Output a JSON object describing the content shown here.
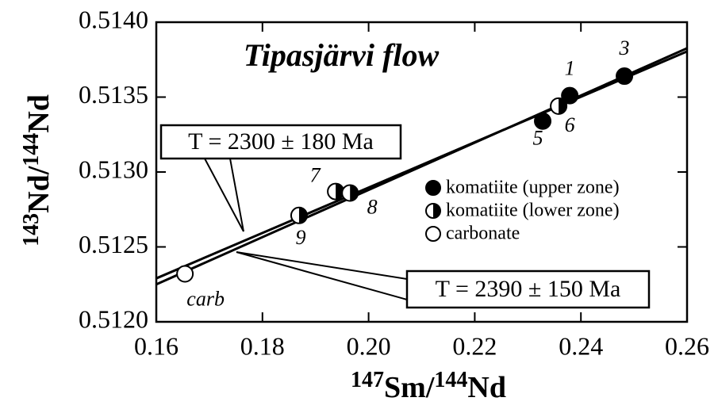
{
  "chart_data": {
    "type": "scatter",
    "title": "Tipasjärvi flow",
    "x_label": [
      "147",
      "Sm/",
      "144",
      "Nd"
    ],
    "y_label": [
      "143",
      "Nd/",
      "144",
      "Nd"
    ],
    "xlim": [
      0.16,
      0.26
    ],
    "xticks": [
      0.16,
      0.18,
      {
        "value": 0.2,
        "label": "0.20"
      },
      0.22,
      0.24,
      0.26
    ],
    "ylim": [
      0.512,
      0.514
    ],
    "yticks": [
      {
        "value": 0.512,
        "label": "0.5120"
      },
      0.5125,
      {
        "value": 0.513,
        "label": "0.5130"
      },
      0.5135,
      {
        "value": 0.514,
        "label": "0.5140"
      }
    ],
    "series": [
      {
        "name": "komatiite (upper zone)",
        "marker": "filled",
        "color": "#000000",
        "x": [
          0.2379,
          0.2482,
          0.2328
        ],
        "values": [
          0.51351,
          0.51364,
          0.51334
        ],
        "labels": [
          "1",
          "3",
          "5"
        ]
      },
      {
        "name": "komatiite (lower zone)",
        "marker": "half",
        "color": "#000000",
        "x": [
          0.2358,
          0.1938,
          0.1965,
          0.1869
        ],
        "values": [
          0.51344,
          0.51287,
          0.51286,
          0.51271
        ],
        "labels": [
          "6",
          "7",
          "8",
          "9"
        ]
      },
      {
        "name": "carbonate",
        "marker": "open",
        "color": "#000000",
        "x": [
          0.1654
        ],
        "values": [
          0.51232
        ],
        "labels": [
          "carb"
        ]
      }
    ],
    "isochrons": [
      {
        "label": "T = 2300 ± 180 Ma",
        "x": [
          0.16,
          0.26
        ],
        "values": [
          0.51229,
          0.513805
        ]
      },
      {
        "label": "T = 2390 ± 150 Ma",
        "x": [
          0.16,
          0.26
        ],
        "values": [
          0.51225,
          0.513826
        ]
      }
    ]
  }
}
